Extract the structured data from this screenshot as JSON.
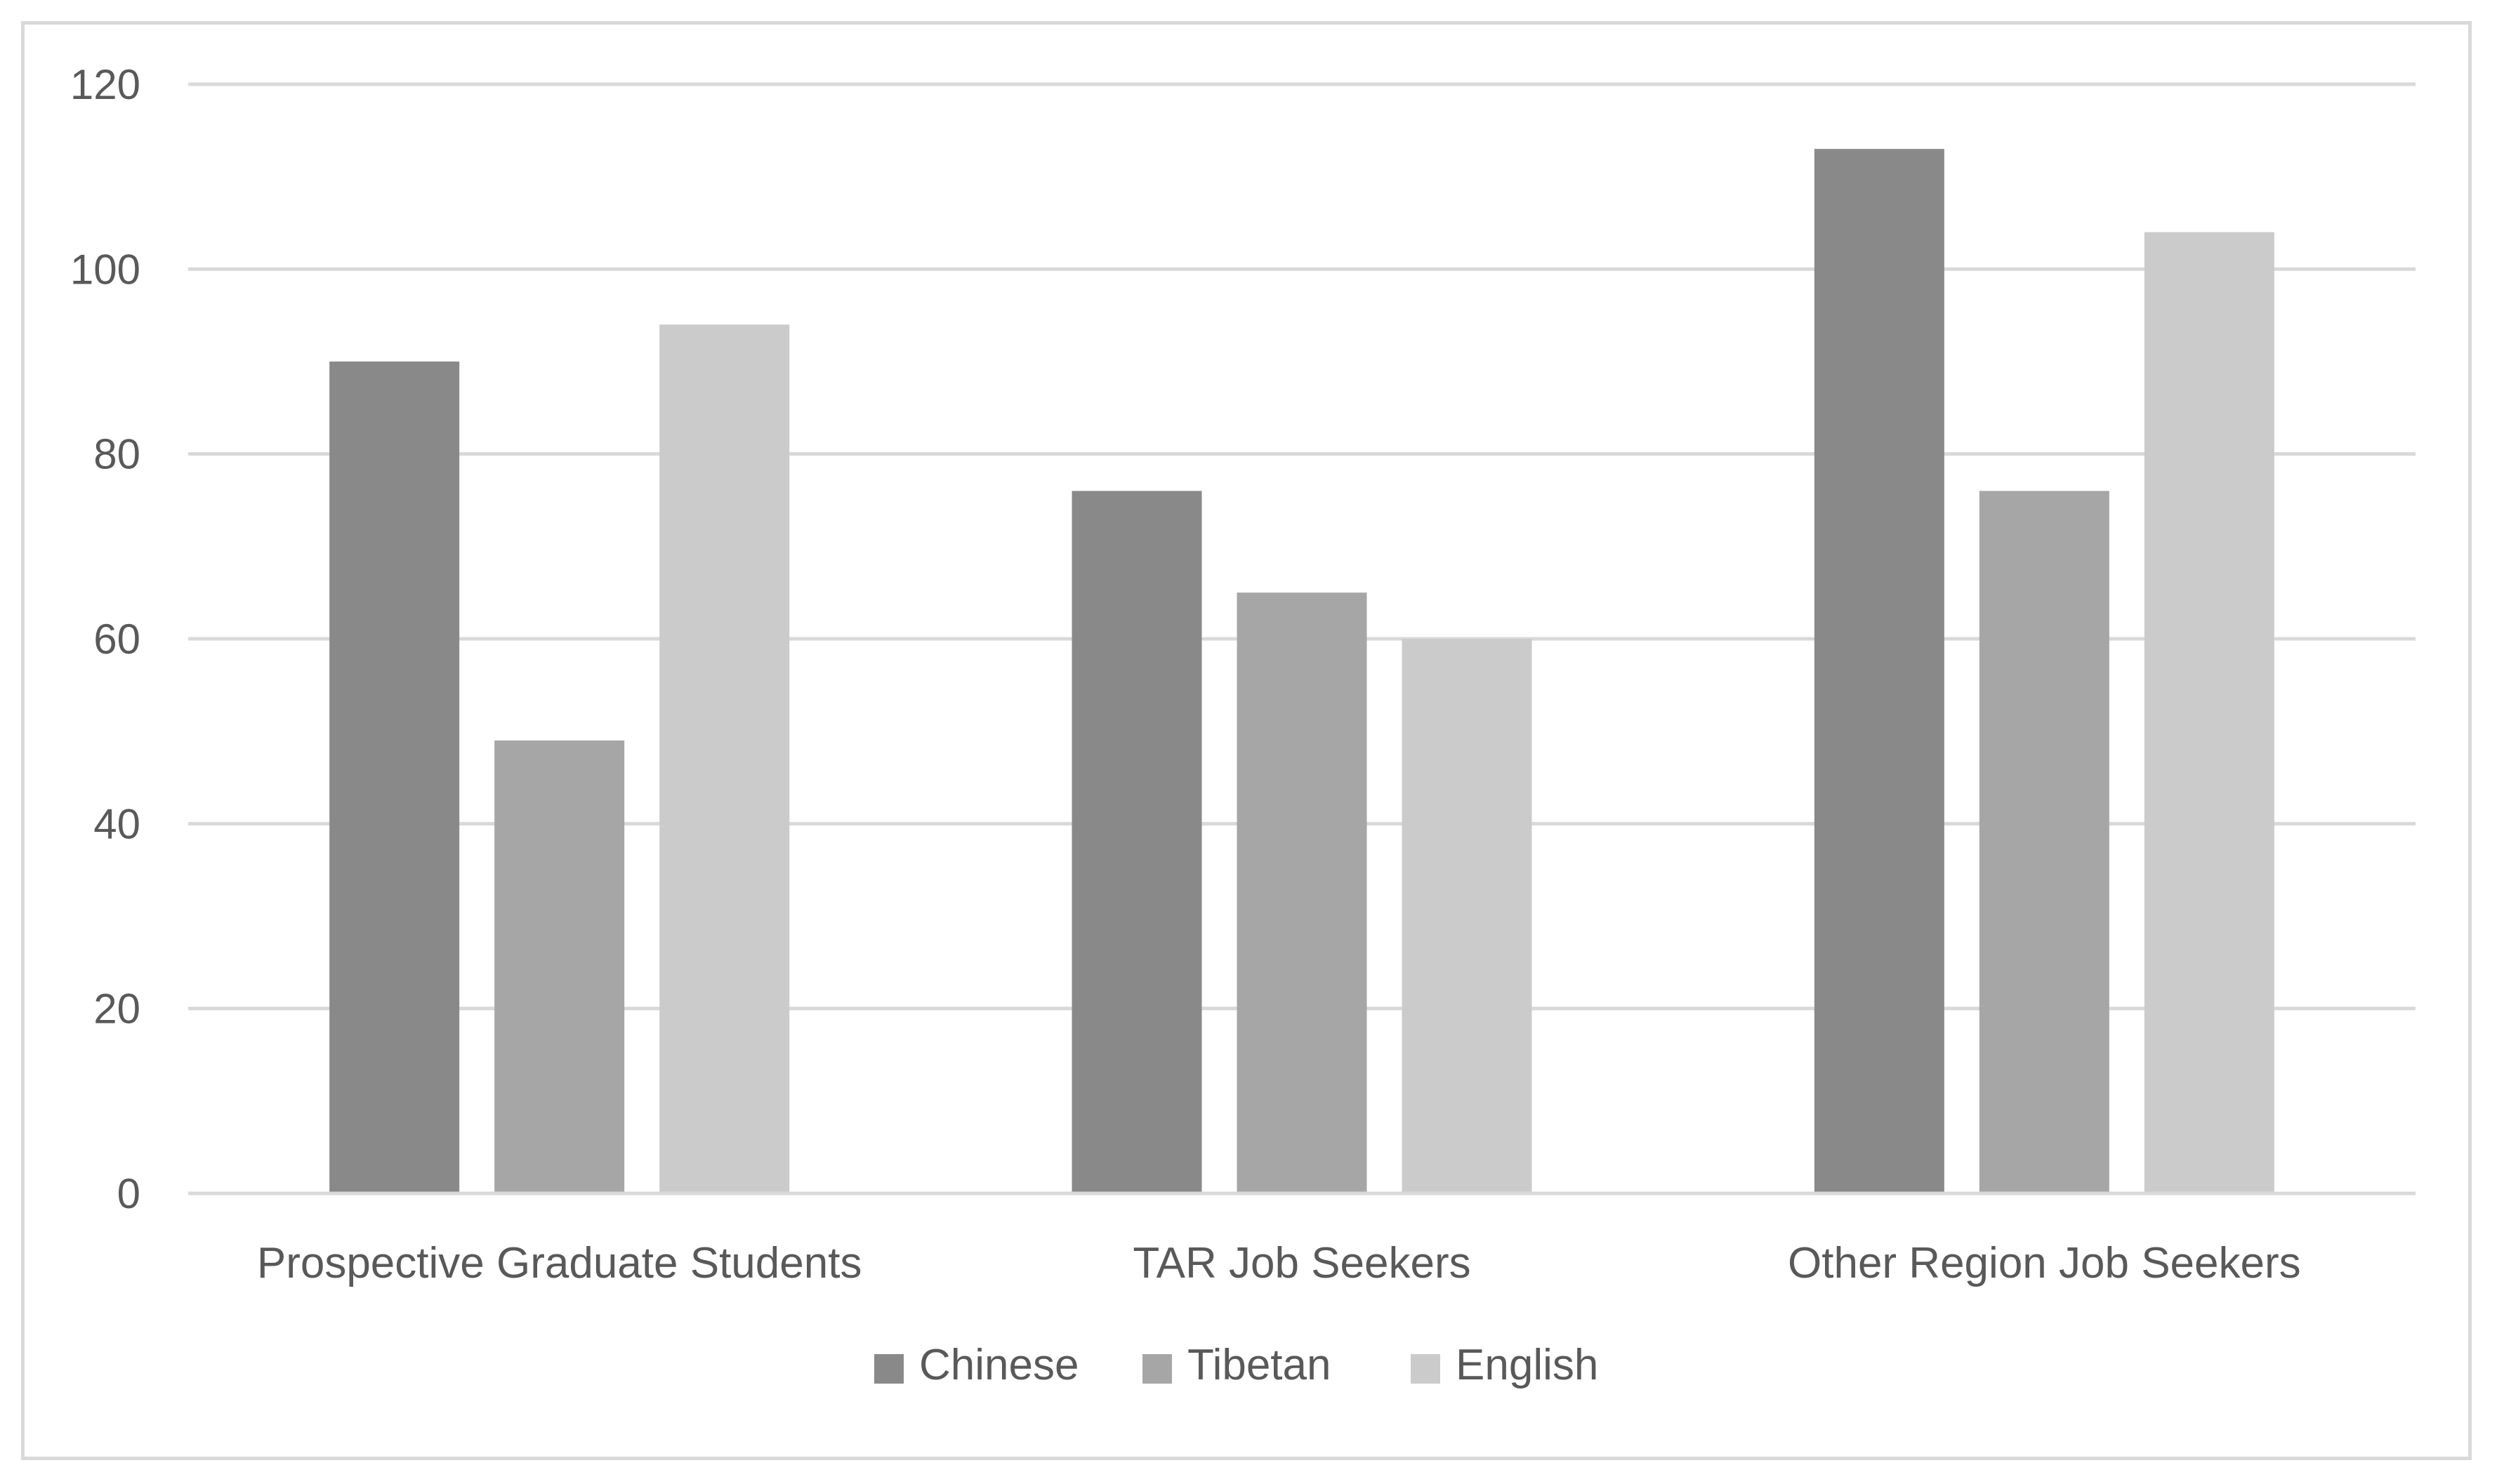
{
  "chart_data": {
    "type": "bar",
    "title": "",
    "xlabel": "",
    "ylabel": "",
    "categories": [
      "Prospective Graduate Students",
      "TAR Job Seekers",
      "Other Region Job Seekers"
    ],
    "series": [
      {
        "name": "Chinese",
        "color": "#898989",
        "values": [
          90,
          76,
          113
        ]
      },
      {
        "name": "Tibetan",
        "color": "#a6a6a6",
        "values": [
          49,
          65,
          76
        ]
      },
      {
        "name": "English",
        "color": "#cbcbcb",
        "values": [
          94,
          60,
          104
        ]
      }
    ],
    "ylim": [
      0,
      120
    ],
    "yticks": [
      "0",
      "20",
      "40",
      "60",
      "80",
      "100",
      "120"
    ],
    "grid": true,
    "legend_position": "bottom"
  }
}
